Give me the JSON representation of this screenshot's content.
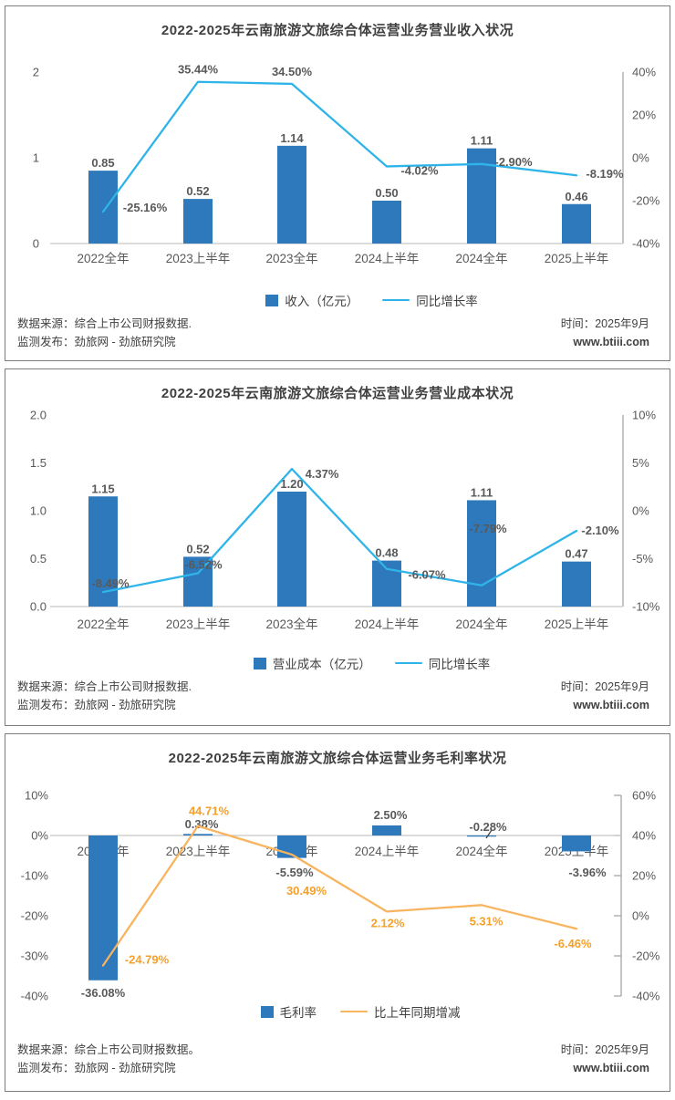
{
  "page": {
    "background": "#ffffff",
    "panel_border": "#7f7f7f"
  },
  "colors": {
    "bar_blue": "#2E78BC",
    "line_blue": "#2FB4EA",
    "line_orange": "#F8B45F",
    "orange_label": "#F5A02B",
    "axis_text": "#595959",
    "data_label_text": "#595959",
    "title_text": "#404040",
    "footer_text": "#404040",
    "axis_line": "#A6A6A6",
    "baseline": "#C8C8C8"
  },
  "chart_data": [
    {
      "type": "bar+line",
      "title": "2022-2025年云南旅游文旅综合体运营业务营业收入状况",
      "categories": [
        "2022全年",
        "2023上半年",
        "2023全年",
        "2024上半年",
        "2024全年",
        "2025上半年"
      ],
      "bar_series": {
        "name": "收入（亿元）",
        "axis": "left",
        "color": "#2E78BC",
        "values": [
          0.85,
          0.52,
          1.14,
          0.5,
          1.11,
          0.46
        ],
        "labels": [
          "0.85",
          "0.52",
          "1.14",
          "0.50",
          "1.11",
          "0.46"
        ]
      },
      "line_series": {
        "name": "同比增长率",
        "axis": "right",
        "color": "#2FB4EA",
        "label_color": "#595959",
        "values": [
          -25.16,
          35.44,
          34.5,
          -4.02,
          -2.9,
          -8.19
        ],
        "labels": [
          "-25.16%",
          "35.44%",
          "34.50%",
          "-4.02%",
          "-2.90%",
          "-8.19%"
        ]
      },
      "left_axis": {
        "range": [
          0,
          2
        ],
        "tick_values": [
          2,
          1,
          0
        ],
        "tick_labels": [
          "2",
          "1",
          "0"
        ]
      },
      "right_axis": {
        "range": [
          -40,
          40
        ],
        "tick_values": [
          40,
          20,
          0,
          -20,
          -40
        ],
        "tick_labels": [
          "40%",
          "20%",
          "0%",
          "-20%",
          "-40%"
        ]
      },
      "legend_position": "bottom",
      "grid": "off",
      "footer": {
        "source1": "数据来源：综合上市公司财报数据.",
        "source2": "监测发布：劲旅网 - 劲旅研究院",
        "time": "时间：2025年9月",
        "site": "www.btiii.com"
      }
    },
    {
      "type": "bar+line",
      "title": "2022-2025年云南旅游文旅综合体运营业务营业成本状况",
      "categories": [
        "2022全年",
        "2023上半年",
        "2023全年",
        "2024上半年",
        "2024全年",
        "2025上半年"
      ],
      "bar_series": {
        "name": "营业成本（亿元）",
        "axis": "left",
        "color": "#2E78BC",
        "values": [
          1.15,
          0.52,
          1.2,
          0.48,
          1.11,
          0.47
        ],
        "labels": [
          "1.15",
          "0.52",
          "1.20",
          "0.48",
          "1.11",
          "0.47"
        ]
      },
      "line_series": {
        "name": "同比增长率",
        "axis": "right",
        "color": "#2FB4EA",
        "label_color": "#595959",
        "values": [
          -8.49,
          -6.52,
          4.37,
          -6.07,
          -7.79,
          -2.1
        ],
        "labels": [
          "-8.49%",
          "-6.52%",
          "4.37%",
          "-6.07%",
          "-7.79%",
          "-2.10%"
        ]
      },
      "left_axis": {
        "range": [
          0,
          2
        ],
        "tick_values": [
          2,
          1.5,
          1,
          0.5,
          0
        ],
        "tick_labels": [
          "2.0",
          "1.5",
          "1.0",
          "0.5",
          "0.0"
        ]
      },
      "right_axis": {
        "range": [
          -10,
          10
        ],
        "tick_values": [
          10,
          5,
          0,
          -5,
          -10
        ],
        "tick_labels": [
          "10%",
          "5%",
          "0%",
          "-5%",
          "-10%"
        ]
      },
      "legend_position": "bottom",
      "grid": "off",
      "footer": {
        "source1": "数据来源：综合上市公司财报数据.",
        "source2": "监测发布：劲旅网 - 劲旅研究院",
        "time": "时间：2025年9月",
        "site": "www.btiii.com"
      }
    },
    {
      "type": "bar+line",
      "title": "2022-2025年云南旅游文旅综合体运营业务毛利率状况",
      "categories": [
        "2022全年",
        "2023上半年",
        "2023全年",
        "2024上半年",
        "2024全年",
        "2025上半年"
      ],
      "bar_series": {
        "name": "毛利率",
        "axis": "left",
        "color": "#2E78BC",
        "values": [
          -36.08,
          0.38,
          -5.59,
          2.5,
          -0.28,
          -3.96
        ],
        "labels": [
          "-36.08%",
          "0.38%",
          "-5.59%",
          "2.50%",
          "-0.28%",
          "-3.96%"
        ]
      },
      "line_series": {
        "name": "比上年同期增减",
        "axis": "right",
        "color": "#F8B45F",
        "label_color": "#F5A02B",
        "values": [
          -24.79,
          44.71,
          30.49,
          2.12,
          5.31,
          -6.46
        ],
        "labels": [
          "-24.79%",
          "44.71%",
          "30.49%",
          "2.12%",
          "5.31%",
          "-6.46%"
        ]
      },
      "left_axis": {
        "range": [
          -40,
          10
        ],
        "tick_values": [
          10,
          0,
          -10,
          -20,
          -30,
          -40
        ],
        "tick_labels": [
          "10%",
          "0%",
          "-10%",
          "-20%",
          "-30%",
          "-40%"
        ]
      },
      "right_axis": {
        "range": [
          -40,
          60
        ],
        "tick_values": [
          60,
          40,
          20,
          0,
          -20,
          -40
        ],
        "tick_labels": [
          "60%",
          "40%",
          "20%",
          "0%",
          "-20%",
          "-40%"
        ]
      },
      "legend_position": "bottom",
      "grid": "off",
      "footer": {
        "source1": "数据来源：综合上市公司财报数据。",
        "source2": "监测发布：劲旅网 - 劲旅研究院",
        "time": "时间：2025年9月",
        "site": "www.btiii.com"
      }
    }
  ]
}
